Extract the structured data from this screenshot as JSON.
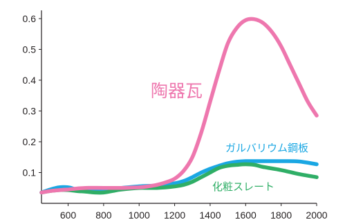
{
  "chart_data": {
    "type": "line",
    "title": "",
    "xlabel": "",
    "ylabel": "",
    "xlim": [
      450,
      2000
    ],
    "ylim": [
      0,
      0.62
    ],
    "x_ticks": [
      600,
      800,
      1000,
      1200,
      1400,
      1600,
      1800,
      2000
    ],
    "y_ticks": [
      0.1,
      0.2,
      0.3,
      0.4,
      0.5,
      0.6
    ],
    "x_tick_labels": [
      "600",
      "800",
      "1000",
      "1200",
      "1400",
      "1600",
      "1800",
      "2000"
    ],
    "y_tick_labels": [
      "0.1",
      "0.2",
      "0.3",
      "0.4",
      "0.5",
      "0.6"
    ],
    "grid": false,
    "legend": "inline labels next to each curve",
    "series": [
      {
        "name": "陶器瓦",
        "color": "#ee77ae",
        "points": [
          [
            450,
            0.035
          ],
          [
            500,
            0.04
          ],
          [
            550,
            0.043
          ],
          [
            600,
            0.045
          ],
          [
            650,
            0.048
          ],
          [
            700,
            0.05
          ],
          [
            800,
            0.05
          ],
          [
            900,
            0.05
          ],
          [
            1000,
            0.052
          ],
          [
            1050,
            0.055
          ],
          [
            1100,
            0.06
          ],
          [
            1150,
            0.068
          ],
          [
            1200,
            0.08
          ],
          [
            1250,
            0.105
          ],
          [
            1300,
            0.15
          ],
          [
            1350,
            0.23
          ],
          [
            1400,
            0.33
          ],
          [
            1450,
            0.43
          ],
          [
            1500,
            0.52
          ],
          [
            1550,
            0.57
          ],
          [
            1600,
            0.595
          ],
          [
            1650,
            0.598
          ],
          [
            1700,
            0.585
          ],
          [
            1750,
            0.555
          ],
          [
            1800,
            0.51
          ],
          [
            1850,
            0.45
          ],
          [
            1900,
            0.39
          ],
          [
            1950,
            0.33
          ],
          [
            2000,
            0.285
          ]
        ]
      },
      {
        "name": "ガルバリウム鋼板",
        "color": "#1aa7e3",
        "points": [
          [
            450,
            0.035
          ],
          [
            500,
            0.045
          ],
          [
            550,
            0.052
          ],
          [
            600,
            0.052
          ],
          [
            650,
            0.045
          ],
          [
            700,
            0.045
          ],
          [
            750,
            0.045
          ],
          [
            800,
            0.045
          ],
          [
            850,
            0.048
          ],
          [
            900,
            0.05
          ],
          [
            1000,
            0.055
          ],
          [
            1100,
            0.058
          ],
          [
            1200,
            0.065
          ],
          [
            1250,
            0.072
          ],
          [
            1300,
            0.085
          ],
          [
            1350,
            0.1
          ],
          [
            1400,
            0.112
          ],
          [
            1450,
            0.122
          ],
          [
            1500,
            0.13
          ],
          [
            1550,
            0.135
          ],
          [
            1600,
            0.137
          ],
          [
            1700,
            0.137
          ],
          [
            1800,
            0.137
          ],
          [
            1900,
            0.136
          ],
          [
            2000,
            0.127
          ]
        ]
      },
      {
        "name": "化粧スレート",
        "color": "#2fae66",
        "points": [
          [
            450,
            0.035
          ],
          [
            500,
            0.04
          ],
          [
            550,
            0.043
          ],
          [
            600,
            0.043
          ],
          [
            650,
            0.04
          ],
          [
            700,
            0.038
          ],
          [
            750,
            0.035
          ],
          [
            800,
            0.035
          ],
          [
            850,
            0.04
          ],
          [
            900,
            0.045
          ],
          [
            1000,
            0.05
          ],
          [
            1100,
            0.05
          ],
          [
            1200,
            0.055
          ],
          [
            1250,
            0.06
          ],
          [
            1300,
            0.07
          ],
          [
            1350,
            0.085
          ],
          [
            1400,
            0.1
          ],
          [
            1450,
            0.115
          ],
          [
            1500,
            0.122
          ],
          [
            1550,
            0.125
          ],
          [
            1600,
            0.127
          ],
          [
            1650,
            0.125
          ],
          [
            1700,
            0.118
          ],
          [
            1800,
            0.108
          ],
          [
            1900,
            0.095
          ],
          [
            2000,
            0.085
          ]
        ]
      }
    ]
  }
}
